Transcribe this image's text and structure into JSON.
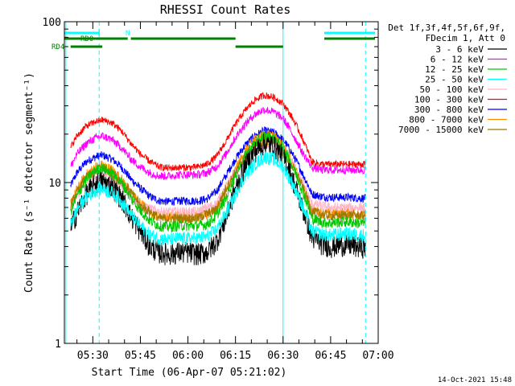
{
  "chart_data": {
    "type": "line",
    "title": "RHESSI Count Rates",
    "xlabel": "Start Time (06-Apr-07 05:21:02)",
    "ylabel": "Count Rate (s⁻¹ detector segment⁻¹)",
    "y_scale": "log",
    "ylim": [
      1,
      100
    ],
    "xlim": [
      "05:21:02",
      "07:00:00"
    ],
    "x_ticks": [
      "05:30",
      "05:45",
      "06:00",
      "06:15",
      "06:30",
      "06:45",
      "07:00"
    ],
    "y_ticks": [
      "1",
      "10",
      "100"
    ],
    "legend_header": [
      "Det 1f,3f,4f,5f,6f,9f,",
      "FDecim 1, Att 0"
    ],
    "legend_position": "right",
    "series": [
      {
        "name": "3 - 6 keV",
        "color": "#000000",
        "x": [
          "05:23",
          "05:25",
          "05:28",
          "05:31",
          "05:33",
          "05:36",
          "05:39",
          "05:42",
          "05:45",
          "05:48",
          "05:51",
          "05:54",
          "05:57",
          "06:00",
          "06:03",
          "06:06",
          "06:09",
          "06:12",
          "06:15",
          "06:18",
          "06:21",
          "06:24",
          "06:27",
          "06:30",
          "06:33",
          "06:36",
          "06:39",
          "06:42",
          "06:45",
          "06:48",
          "06:51",
          "06:54",
          "06:56"
        ],
        "values": [
          5.2,
          6.5,
          8.5,
          10.0,
          10.2,
          9.5,
          8.0,
          6.2,
          5.0,
          4.0,
          3.7,
          3.6,
          3.7,
          3.7,
          3.6,
          3.7,
          4.3,
          6.0,
          9.0,
          12.5,
          15.5,
          17.5,
          17.0,
          14.5,
          10.5,
          7.0,
          4.6,
          4.2,
          4.0,
          4.1,
          4.1,
          4.0,
          4.0
        ]
      },
      {
        "name": "6 - 12 keV",
        "color": "#ff00ff",
        "x": [
          "05:23",
          "05:25",
          "05:28",
          "05:31",
          "05:33",
          "05:36",
          "05:39",
          "05:42",
          "05:45",
          "05:48",
          "05:51",
          "05:54",
          "05:57",
          "06:00",
          "06:03",
          "06:06",
          "06:09",
          "06:12",
          "06:15",
          "06:18",
          "06:21",
          "06:24",
          "06:27",
          "06:30",
          "06:33",
          "06:36",
          "06:39",
          "06:42",
          "06:45",
          "06:48",
          "06:51",
          "06:54",
          "06:56"
        ],
        "values": [
          12.5,
          15.0,
          17.5,
          19.0,
          19.5,
          18.5,
          16.5,
          14.0,
          12.5,
          11.5,
          11.0,
          11.0,
          11.2,
          11.2,
          11.2,
          11.5,
          12.5,
          15.0,
          19.0,
          23.0,
          26.5,
          28.5,
          27.5,
          25.0,
          20.0,
          15.5,
          12.5,
          12.0,
          12.0,
          12.0,
          12.0,
          12.0,
          12.0
        ]
      },
      {
        "name": "12 - 25 keV",
        "color": "#00c800",
        "x": [
          "05:23",
          "05:25",
          "05:28",
          "05:31",
          "05:33",
          "05:36",
          "05:39",
          "05:42",
          "05:45",
          "05:48",
          "05:51",
          "05:54",
          "05:57",
          "06:00",
          "06:03",
          "06:06",
          "06:09",
          "06:12",
          "06:15",
          "06:18",
          "06:21",
          "06:24",
          "06:27",
          "06:30",
          "06:33",
          "06:36",
          "06:39",
          "06:42",
          "06:45",
          "06:48",
          "06:51",
          "06:54",
          "06:56"
        ],
        "values": [
          6.5,
          8.2,
          10.5,
          12.0,
          12.3,
          11.5,
          10.0,
          8.0,
          6.7,
          5.8,
          5.4,
          5.3,
          5.4,
          5.4,
          5.4,
          5.5,
          6.2,
          8.0,
          11.0,
          14.5,
          17.5,
          19.5,
          19.0,
          16.5,
          12.5,
          9.0,
          6.0,
          5.7,
          5.6,
          5.7,
          5.7,
          5.6,
          5.6
        ]
      },
      {
        "name": "25 - 50 keV",
        "color": "#00ffff",
        "x": [
          "05:23",
          "05:25",
          "05:28",
          "05:31",
          "05:33",
          "05:36",
          "05:39",
          "05:42",
          "05:45",
          "05:48",
          "05:51",
          "05:54",
          "05:57",
          "06:00",
          "06:03",
          "06:06",
          "06:09",
          "06:12",
          "06:15",
          "06:18",
          "06:21",
          "06:24",
          "06:27",
          "06:30",
          "06:33",
          "06:36",
          "06:39",
          "06:42",
          "06:45",
          "06:48",
          "06:51",
          "06:54",
          "06:56"
        ],
        "values": [
          5.5,
          6.8,
          8.2,
          9.0,
          9.2,
          8.7,
          7.7,
          6.3,
          5.4,
          4.7,
          4.5,
          4.4,
          4.5,
          4.5,
          4.5,
          4.6,
          5.1,
          6.4,
          8.5,
          11.0,
          13.0,
          14.5,
          14.0,
          12.5,
          9.8,
          7.2,
          5.0,
          4.8,
          4.7,
          4.8,
          4.8,
          4.7,
          4.7
        ]
      },
      {
        "name": "50 - 100 keV",
        "color": "#ffb4c8",
        "x": [
          "05:23",
          "05:28",
          "05:33",
          "05:39",
          "05:45",
          "05:51",
          "05:57",
          "06:03",
          "06:09",
          "06:15",
          "06:21",
          "06:27",
          "06:33",
          "06:39",
          "06:45",
          "06:51",
          "06:56"
        ],
        "values": [
          7.0,
          10.0,
          11.5,
          9.5,
          7.2,
          6.6,
          6.6,
          6.6,
          7.4,
          11.5,
          16.5,
          17.5,
          13.0,
          7.4,
          7.0,
          7.0,
          7.0
        ]
      },
      {
        "name": "100 - 300 keV",
        "color": "#ff0000",
        "x": [
          "05:23",
          "05:25",
          "05:28",
          "05:31",
          "05:33",
          "05:36",
          "05:39",
          "05:42",
          "05:45",
          "05:48",
          "05:51",
          "05:54",
          "05:57",
          "06:00",
          "06:03",
          "06:06",
          "06:09",
          "06:12",
          "06:15",
          "06:18",
          "06:21",
          "06:24",
          "06:27",
          "06:30",
          "06:33",
          "06:36",
          "06:39",
          "06:42",
          "06:45",
          "06:48",
          "06:51",
          "06:54",
          "06:56"
        ],
        "values": [
          16.5,
          19.5,
          22.5,
          24.0,
          24.5,
          23.5,
          21.0,
          17.5,
          15.0,
          13.5,
          12.5,
          12.3,
          12.4,
          12.4,
          12.5,
          13.0,
          14.5,
          18.0,
          23.0,
          28.0,
          32.5,
          35.0,
          34.0,
          31.0,
          25.0,
          19.0,
          13.5,
          13.0,
          13.0,
          13.0,
          13.0,
          13.0,
          13.0
        ]
      },
      {
        "name": "300 - 800 keV",
        "color": "#0000ff",
        "x": [
          "05:23",
          "05:25",
          "05:28",
          "05:31",
          "05:33",
          "05:36",
          "05:39",
          "05:42",
          "05:45",
          "05:48",
          "05:51",
          "05:54",
          "05:57",
          "06:00",
          "06:03",
          "06:06",
          "06:09",
          "06:12",
          "06:15",
          "06:18",
          "06:21",
          "06:24",
          "06:27",
          "06:30",
          "06:33",
          "06:36",
          "06:39",
          "06:42",
          "06:45",
          "06:48",
          "06:51",
          "06:54",
          "06:56"
        ],
        "values": [
          9.5,
          11.5,
          13.5,
          14.5,
          14.8,
          14.0,
          12.5,
          10.5,
          9.2,
          8.2,
          7.7,
          7.6,
          7.7,
          7.7,
          7.7,
          7.9,
          8.8,
          11.0,
          14.0,
          17.0,
          19.5,
          21.0,
          20.5,
          18.5,
          15.0,
          11.5,
          8.5,
          8.2,
          8.1,
          8.1,
          8.1,
          8.0,
          8.0
        ]
      },
      {
        "name": "800 - 7000 keV",
        "color": "#ff8c00",
        "x": [
          "05:23",
          "05:25",
          "05:28",
          "05:31",
          "05:33",
          "05:36",
          "05:39",
          "05:42",
          "05:45",
          "05:48",
          "05:51",
          "05:54",
          "05:57",
          "06:00",
          "06:03",
          "06:06",
          "06:09",
          "06:12",
          "06:15",
          "06:18",
          "06:21",
          "06:24",
          "06:27",
          "06:30",
          "06:33",
          "06:36",
          "06:39",
          "06:42",
          "06:45",
          "06:48",
          "06:51",
          "06:54",
          "06:56"
        ],
        "values": [
          7.3,
          9.0,
          11.2,
          12.5,
          12.8,
          12.0,
          10.5,
          8.6,
          7.4,
          6.6,
          6.2,
          6.1,
          6.2,
          6.2,
          6.2,
          6.3,
          7.0,
          8.8,
          12.0,
          15.5,
          18.5,
          20.0,
          19.5,
          17.0,
          13.0,
          9.6,
          6.8,
          6.5,
          6.4,
          6.5,
          6.5,
          6.4,
          6.4
        ]
      },
      {
        "name": "7000 - 15000 keV",
        "color": "#a07800",
        "x": [
          "05:23",
          "05:28",
          "05:33",
          "05:39",
          "05:45",
          "05:51",
          "05:57",
          "06:03",
          "06:09",
          "06:15",
          "06:21",
          "06:27",
          "06:33",
          "06:39",
          "06:45",
          "06:51",
          "06:56"
        ],
        "values": [
          7.2,
          10.8,
          12.4,
          10.2,
          7.2,
          6.0,
          6.0,
          6.0,
          6.8,
          11.5,
          17.5,
          18.5,
          12.5,
          6.6,
          6.2,
          6.3,
          6.2
        ]
      }
    ],
    "attenuator_bars": [
      {
        "label": "RD0",
        "color": "#008000",
        "segments": [
          [
            "05:21",
            "05:41"
          ],
          [
            "05:42",
            "06:15"
          ],
          [
            "06:43",
            "06:59"
          ]
        ]
      },
      {
        "label": "RD4",
        "color": "#008000",
        "segments": [
          [
            "05:23",
            "05:33"
          ],
          [
            "06:15",
            "06:30"
          ]
        ]
      },
      {
        "label": "N",
        "color": "#00ffff",
        "segments": [
          [
            "05:21",
            "05:32"
          ],
          [
            "06:43",
            "06:59"
          ]
        ]
      }
    ],
    "boundaries": [
      {
        "time": "05:21:30",
        "style": "solid"
      },
      {
        "time": "05:32",
        "style": "dashed"
      },
      {
        "time": "06:30",
        "style": "solid"
      },
      {
        "time": "06:56",
        "style": "dashed"
      }
    ],
    "grid": false
  },
  "footer": {
    "date": "14-Oct-2021 15:48"
  }
}
